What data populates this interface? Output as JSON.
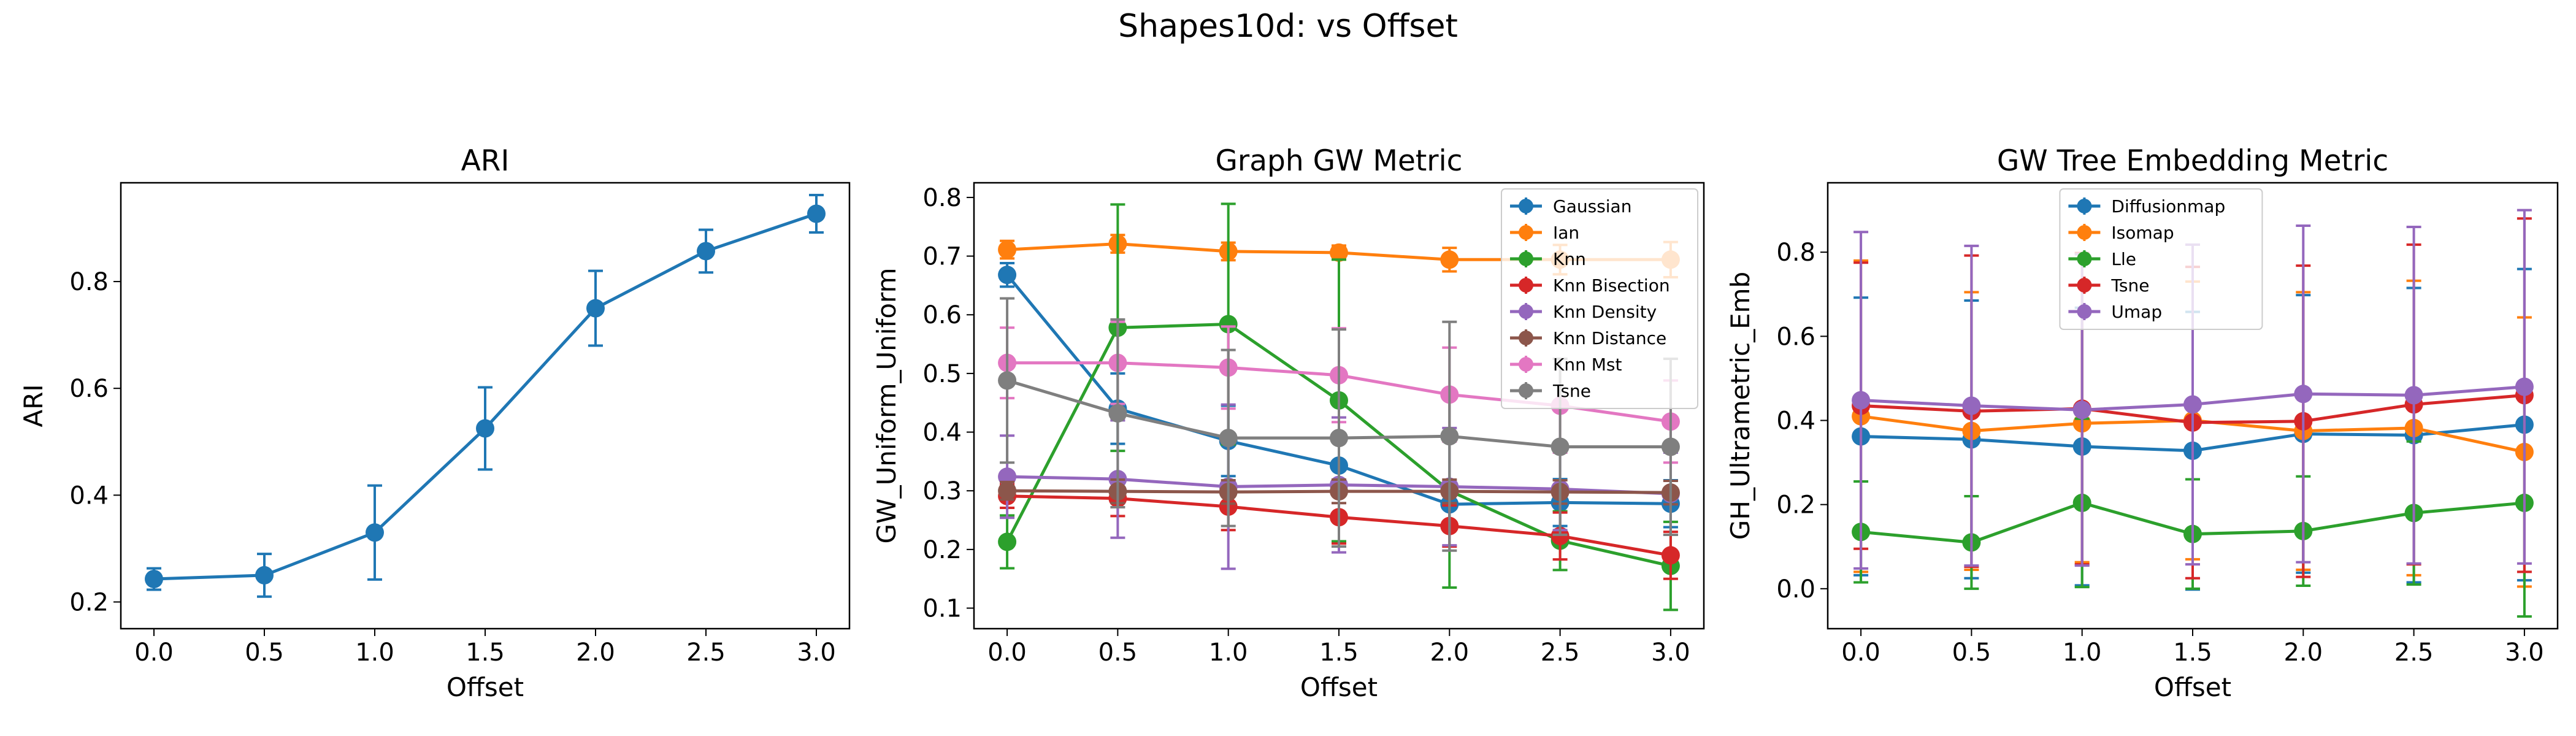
{
  "figure": {
    "title": "Shapes10d: vs Offset"
  },
  "chart_data": [
    {
      "type": "line",
      "title": "ARI",
      "xlabel": "Offset",
      "ylabel": "ARI",
      "x": [
        0.0,
        0.5,
        1.0,
        1.5,
        2.0,
        2.5,
        3.0
      ],
      "xlim": [
        -0.15,
        3.15
      ],
      "ylim": [
        0.15,
        0.985
      ],
      "xticks": [
        0.0,
        0.5,
        1.0,
        1.5,
        2.0,
        2.5,
        3.0
      ],
      "xtick_labels": [
        "0.0",
        "0.5",
        "1.0",
        "1.5",
        "2.0",
        "2.5",
        "3.0"
      ],
      "yticks": [
        0.2,
        0.4,
        0.6,
        0.8
      ],
      "ytick_labels": [
        "0.2",
        "0.4",
        "0.6",
        "0.8"
      ],
      "legend": null,
      "series": [
        {
          "color": "#1f77b4",
          "values": [
            0.243,
            0.25,
            0.33,
            0.525,
            0.75,
            0.857,
            0.927
          ],
          "err": [
            0.02,
            0.04,
            0.088,
            0.077,
            0.07,
            0.04,
            0.035
          ]
        }
      ]
    },
    {
      "type": "line",
      "title": "Graph GW Metric",
      "xlabel": "Offset",
      "ylabel": "GW_Uniform_Uniform",
      "x": [
        0.0,
        0.5,
        1.0,
        1.5,
        2.0,
        2.5,
        3.0
      ],
      "xlim": [
        -0.15,
        3.15
      ],
      "ylim": [
        0.065,
        0.825
      ],
      "xticks": [
        0.0,
        0.5,
        1.0,
        1.5,
        2.0,
        2.5,
        3.0
      ],
      "xtick_labels": [
        "0.0",
        "0.5",
        "1.0",
        "1.5",
        "2.0",
        "2.5",
        "3.0"
      ],
      "yticks": [
        0.1,
        0.2,
        0.3,
        0.4,
        0.5,
        0.6,
        0.7,
        0.8
      ],
      "ytick_labels": [
        "0.1",
        "0.2",
        "0.3",
        "0.4",
        "0.5",
        "0.6",
        "0.7",
        "0.8"
      ],
      "legend": "top-right",
      "series": [
        {
          "name": "Gaussian",
          "color": "#1f77b4",
          "values": [
            0.668,
            0.44,
            0.385,
            0.343,
            0.277,
            0.28,
            0.278
          ],
          "err": [
            0.02,
            0.06,
            0.06,
            0.05,
            0.035,
            0.04,
            0.04
          ]
        },
        {
          "name": "Ian",
          "color": "#ff7f0e",
          "values": [
            0.711,
            0.721,
            0.708,
            0.706,
            0.694,
            0.694,
            0.694
          ],
          "err": [
            0.015,
            0.015,
            0.015,
            0.012,
            0.02,
            0.025,
            0.03
          ]
        },
        {
          "name": "Knn",
          "color": "#2ca02c",
          "values": [
            0.213,
            0.578,
            0.584,
            0.454,
            0.3,
            0.215,
            0.172
          ],
          "err": [
            0.045,
            0.21,
            0.205,
            0.24,
            0.165,
            0.05,
            0.075
          ]
        },
        {
          "name": "Knn Bisection",
          "color": "#d62728",
          "values": [
            0.291,
            0.287,
            0.273,
            0.255,
            0.24,
            0.223,
            0.19
          ],
          "err": [
            0.02,
            0.03,
            0.04,
            0.045,
            0.035,
            0.04,
            0.04
          ]
        },
        {
          "name": "Knn Density",
          "color": "#9467bd",
          "values": [
            0.324,
            0.32,
            0.307,
            0.31,
            0.307,
            0.303,
            0.295
          ],
          "err": [
            0.07,
            0.1,
            0.14,
            0.115,
            0.1,
            0.07,
            0.07
          ]
        },
        {
          "name": "Knn Distance",
          "color": "#8c564b",
          "values": [
            0.3,
            0.299,
            0.298,
            0.299,
            0.299,
            0.298,
            0.297
          ],
          "err": [
            0.015,
            0.02,
            0.02,
            0.02,
            0.02,
            0.02,
            0.02
          ]
        },
        {
          "name": "Knn Mst",
          "color": "#e377c2",
          "values": [
            0.518,
            0.518,
            0.51,
            0.497,
            0.464,
            0.445,
            0.418
          ],
          "err": [
            0.06,
            0.07,
            0.07,
            0.08,
            0.08,
            0.08,
            0.07
          ]
        },
        {
          "name": "Tsne",
          "color": "#7f7f7f",
          "values": [
            0.488,
            0.432,
            0.39,
            0.39,
            0.393,
            0.375,
            0.375
          ],
          "err": [
            0.14,
            0.16,
            0.15,
            0.185,
            0.195,
            0.15,
            0.15
          ]
        }
      ]
    },
    {
      "type": "line",
      "title": "GW Tree Embedding Metric",
      "xlabel": "Offset",
      "ylabel": "GH_Ultrametric_Emb",
      "x": [
        0.0,
        0.5,
        1.0,
        1.5,
        2.0,
        2.5,
        3.0
      ],
      "xlim": [
        -0.15,
        3.15
      ],
      "ylim": [
        -0.095,
        0.965
      ],
      "xticks": [
        0.0,
        0.5,
        1.0,
        1.5,
        2.0,
        2.5,
        3.0
      ],
      "xtick_labels": [
        "0.0",
        "0.5",
        "1.0",
        "1.5",
        "2.0",
        "2.5",
        "3.0"
      ],
      "yticks": [
        0.0,
        0.2,
        0.4,
        0.6,
        0.8
      ],
      "ytick_labels": [
        "0.0",
        "0.2",
        "0.4",
        "0.6",
        "0.8"
      ],
      "legend": "top-center",
      "series": [
        {
          "name": "Diffusionmap",
          "color": "#1f77b4",
          "values": [
            0.362,
            0.355,
            0.338,
            0.328,
            0.368,
            0.365,
            0.39
          ],
          "err": [
            0.33,
            0.33,
            0.33,
            0.33,
            0.33,
            0.35,
            0.37
          ]
        },
        {
          "name": "Isomap",
          "color": "#ff7f0e",
          "values": [
            0.41,
            0.375,
            0.393,
            0.4,
            0.375,
            0.382,
            0.325
          ],
          "err": [
            0.37,
            0.33,
            0.33,
            0.33,
            0.33,
            0.35,
            0.32
          ]
        },
        {
          "name": "Lle",
          "color": "#2ca02c",
          "values": [
            0.135,
            0.11,
            0.204,
            0.13,
            0.137,
            0.18,
            0.204
          ],
          "err": [
            0.12,
            0.11,
            0.2,
            0.13,
            0.13,
            0.17,
            0.27
          ]
        },
        {
          "name": "Tsne",
          "color": "#d62728",
          "values": [
            0.435,
            0.422,
            0.428,
            0.395,
            0.398,
            0.438,
            0.46
          ],
          "err": [
            0.34,
            0.37,
            0.37,
            0.37,
            0.37,
            0.38,
            0.42
          ]
        },
        {
          "name": "Umap",
          "color": "#9467bd",
          "values": [
            0.448,
            0.435,
            0.425,
            0.438,
            0.463,
            0.46,
            0.48
          ],
          "err": [
            0.4,
            0.38,
            0.37,
            0.38,
            0.4,
            0.4,
            0.42
          ]
        }
      ]
    }
  ]
}
